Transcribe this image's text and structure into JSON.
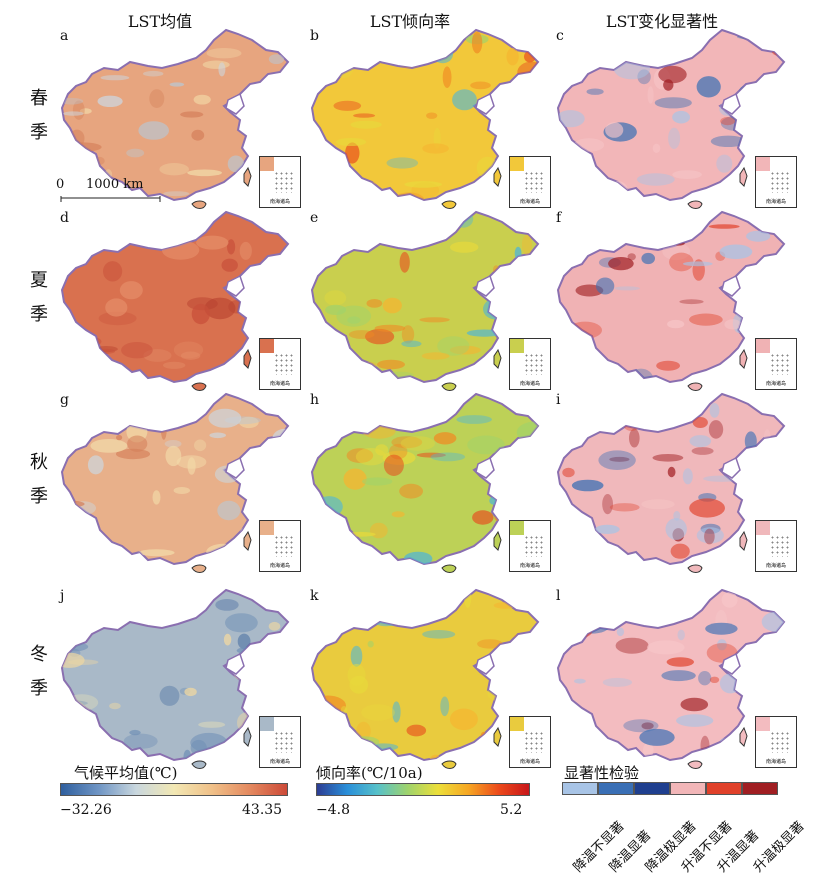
{
  "columns": [
    "LST均值",
    "LST倾向率",
    "LST变化显著性"
  ],
  "rows": [
    {
      "label_top": "春",
      "label_bottom": "季",
      "panels": [
        "a",
        "b",
        "c"
      ]
    },
    {
      "label_top": "夏",
      "label_bottom": "季",
      "panels": [
        "d",
        "e",
        "f"
      ]
    },
    {
      "label_top": "秋",
      "label_bottom": "季",
      "panels": [
        "g",
        "h",
        "i"
      ]
    },
    {
      "label_top": "冬",
      "label_bottom": "季",
      "panels": [
        "j",
        "k",
        "l"
      ]
    }
  ],
  "scale_bar": {
    "zero": "0",
    "length": "1000 km"
  },
  "inset_label": "南海诸岛",
  "legends": {
    "mean": {
      "title": "气候平均值(℃)",
      "min": "−32.26",
      "max": "43.35"
    },
    "trend": {
      "title": "倾向率(℃/10a)",
      "min": "−4.8",
      "max": "5.2"
    },
    "significance": {
      "title": "显著性检验",
      "classes": [
        "降温不显著",
        "降温显著",
        "降温极显著",
        "升温不显著",
        "升温显著",
        "升温极显著"
      ]
    }
  },
  "colors": {
    "mean_spring": "#e7a57f",
    "mean_summer": "#d9714f",
    "mean_autumn": "#e8b08a",
    "mean_winter": "#a9b9c8",
    "trend_spring": "#f2c83a",
    "trend_summer": "#c9cf4e",
    "trend_autumn": "#bdd157",
    "trend_winter": "#e9cb3e",
    "sig_spring": "#f2b6b8",
    "sig_summer": "#f0b2b4",
    "sig_autumn": "#f0b8bb",
    "sig_winter": "#f3bcc0",
    "sig_classes": [
      "#a8c4e6",
      "#3a6fb5",
      "#1f3f8f",
      "#f2b6b8",
      "#e0412a",
      "#a01e22"
    ],
    "border": "#8a6fb0"
  }
}
